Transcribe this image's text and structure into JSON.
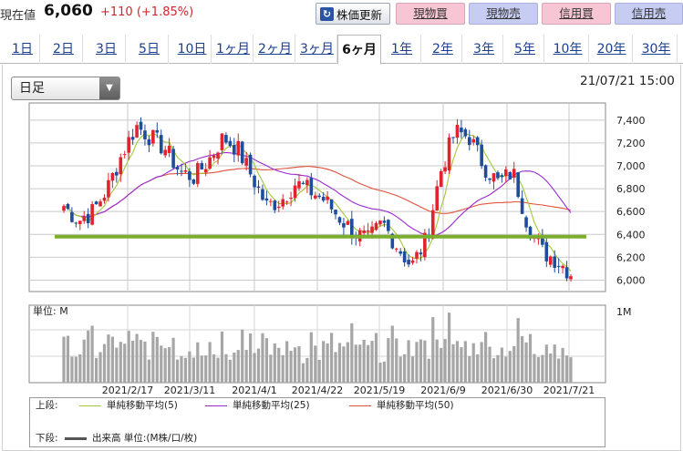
{
  "header": {
    "price_label": "現在値",
    "price_value": "6,060",
    "price_change": "+110 (+1.85%)",
    "refresh_label": "株価更新",
    "buttons": [
      {
        "label": "現物買",
        "color": "#f7c5d4"
      },
      {
        "label": "現物売",
        "color": "#c7cdf2"
      },
      {
        "label": "信用買",
        "color": "#f7c5d4"
      },
      {
        "label": "信用売",
        "color": "#c7cdf2"
      }
    ]
  },
  "tabs": [
    "1日",
    "2日",
    "3日",
    "5日",
    "10日",
    "1ヶ月",
    "2ヶ月",
    "3ヶ月",
    "6ヶ月",
    "1年",
    "2年",
    "3年",
    "5年",
    "10年",
    "20年",
    "30年"
  ],
  "active_tab": "6ヶ月",
  "chart": {
    "period_select": "日足",
    "timestamp": "21/07/21 15:00",
    "volume_unit_label": "単位: M",
    "volume_tick": "1M",
    "price_ticks": [
      "7,400",
      "7,200",
      "7,000",
      "6,800",
      "6,600",
      "6,400",
      "6,200",
      "6,000"
    ],
    "date_labels": [
      "2021/2/17",
      "2021/3/11",
      "2021/4/1",
      "2021/4/22",
      "2021/5/19",
      "2021/6/9",
      "2021/6/30",
      "2021/7/21"
    ],
    "support_line_value": 6380
  },
  "chart_data": {
    "type": "candlestick",
    "ylim": [
      5900,
      7550
    ],
    "x_categories": [
      "2021/2/17",
      "2021/3/11",
      "2021/4/1",
      "2021/4/22",
      "2021/5/19",
      "2021/6/9",
      "2021/6/30",
      "2021/7/21"
    ],
    "close_approx": [
      6650,
      6520,
      6600,
      6800,
      7100,
      7350,
      7250,
      7150,
      6950,
      6900,
      7050,
      7250,
      7150,
      6900,
      6650,
      6700,
      6850,
      6780,
      6700,
      6550,
      6420,
      6350,
      6500,
      6300,
      6120,
      6350,
      6950,
      7300,
      7250,
      7000,
      6850,
      6950,
      6500,
      6250,
      6180,
      6060
    ],
    "series": [
      {
        "name": "単純移動平均(5)",
        "color": "#a3c93a"
      },
      {
        "name": "単純移動平均(25)",
        "color": "#9a2bd0"
      },
      {
        "name": "単純移動平均(50)",
        "color": "#e0533a"
      },
      {
        "name": "出来高 単位:(M株/口/枚)",
        "color": "#555555"
      }
    ]
  },
  "legend": {
    "upper_label": "上段:",
    "lower_label": "下段:",
    "items": [
      "単純移動平均(5)",
      "単純移動平均(25)",
      "単純移動平均(50)"
    ],
    "volume_item": "出来高 単位:(M株/口/枚)"
  },
  "colors": {
    "up_candle": "#e0242f",
    "down_candle": "#1d4d9c",
    "support_line": "#7cae2d",
    "volume_bar": "#a6a6a6"
  }
}
